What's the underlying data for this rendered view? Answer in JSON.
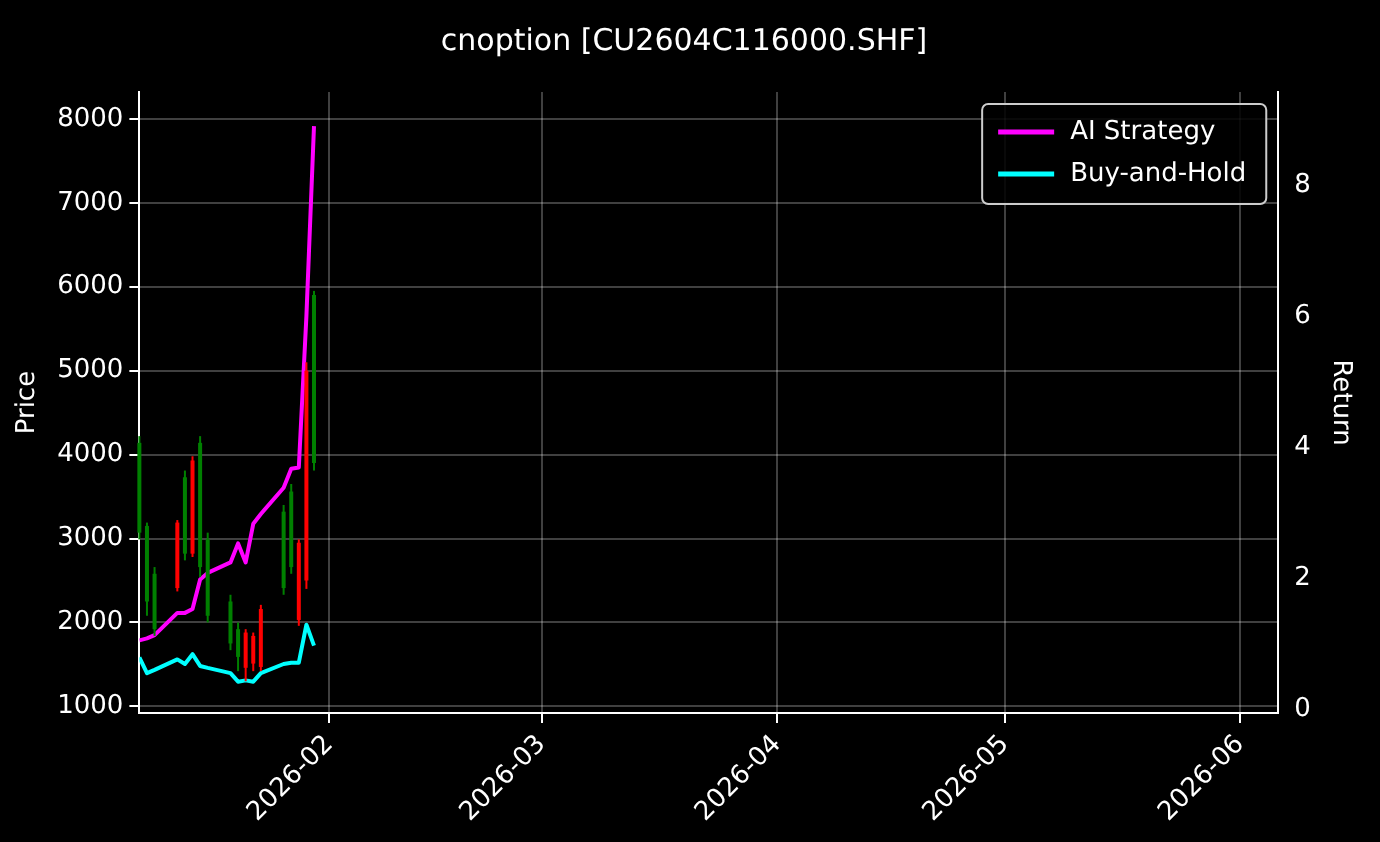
{
  "chart_data": {
    "type": "candlestick",
    "title": "cnoption [CU2604C116000.SHF]",
    "ylabel": "Price",
    "y2label": "Return",
    "x": [
      "2026-01-07",
      "2026-01-08",
      "2026-01-09",
      "2026-01-12",
      "2026-01-13",
      "2026-01-14",
      "2026-01-15",
      "2026-01-16",
      "2026-01-19",
      "2026-01-20",
      "2026-01-21",
      "2026-01-22",
      "2026-01-23",
      "2026-01-26",
      "2026-01-27",
      "2026-01-28",
      "2026-01-29",
      "2026-01-30"
    ],
    "ohlc": [
      [
        3070,
        4220,
        2990,
        4140
      ],
      [
        2250,
        3190,
        2080,
        3150
      ],
      [
        1920,
        2660,
        1840,
        2580
      ],
      [
        3190,
        3220,
        2370,
        2410
      ],
      [
        2820,
        3810,
        2740,
        3730
      ],
      [
        3930,
        3980,
        2780,
        2820
      ],
      [
        2660,
        4220,
        2540,
        4140
      ],
      [
        2080,
        3070,
        2000,
        2990
      ],
      [
        1750,
        2330,
        1670,
        2250
      ],
      [
        1590,
        2000,
        1420,
        1920
      ],
      [
        1880,
        1920,
        1300,
        1460
      ],
      [
        1840,
        1880,
        1420,
        1510
      ],
      [
        2160,
        2210,
        1420,
        1470
      ],
      [
        2410,
        3400,
        2330,
        3320
      ],
      [
        2660,
        3650,
        2580,
        3560
      ],
      [
        2950,
        2990,
        1960,
        2030
      ],
      [
        5000,
        5100,
        2400,
        2500
      ],
      [
        3900,
        5950,
        3810,
        5900
      ]
    ],
    "colors": [
      "#008000",
      "#008000",
      "#008000",
      "#ff0000",
      "#008000",
      "#ff0000",
      "#008000",
      "#008000",
      "#008000",
      "#008000",
      "#ff0000",
      "#ff0000",
      "#ff0000",
      "#008000",
      "#008000",
      "#ff0000",
      "#ff0000",
      "#008000"
    ],
    "series": [
      {
        "name": "AI Strategy",
        "type": "line",
        "axis": "y2",
        "color": "#ff00ff",
        "values": [
          1.05,
          1.08,
          1.13,
          1.47,
          1.47,
          1.53,
          1.98,
          2.08,
          2.24,
          2.53,
          2.24,
          2.83,
          2.98,
          3.38,
          3.67,
          3.69,
          6.0,
          8.9
        ]
      },
      {
        "name": "Buy-and-Hold",
        "type": "line",
        "axis": "y2",
        "color": "#00ffff",
        "values": [
          0.79,
          0.55,
          0.6,
          0.76,
          0.69,
          0.84,
          0.66,
          0.63,
          0.55,
          0.42,
          0.44,
          0.42,
          0.55,
          0.69,
          0.71,
          0.71,
          1.29,
          0.97
        ]
      }
    ],
    "xlim": [
      "2026-01-07",
      "2026-06-06"
    ],
    "xticks": [
      {
        "value": "2026-02-01",
        "label": "2026-02"
      },
      {
        "value": "2026-03-01",
        "label": "2026-03"
      },
      {
        "value": "2026-04-01",
        "label": "2026-04"
      },
      {
        "value": "2026-05-01",
        "label": "2026-05"
      },
      {
        "value": "2026-06-01",
        "label": "2026-06"
      }
    ],
    "ylim": [
      920,
      8320
    ],
    "yticks": [
      1000,
      2000,
      3000,
      4000,
      5000,
      6000,
      7000,
      8000
    ],
    "y2lim": [
      -0.06,
      9.42
    ],
    "y2ticks": [
      0,
      2,
      4,
      6,
      8
    ],
    "grid": true,
    "legend": "top right"
  }
}
